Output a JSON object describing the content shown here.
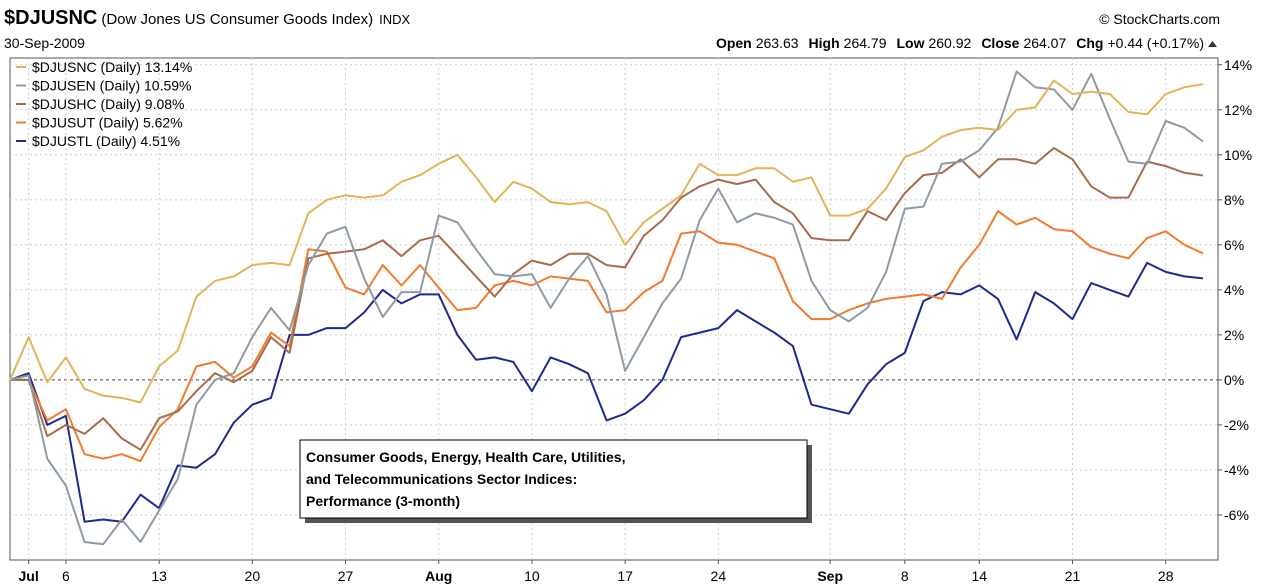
{
  "header": {
    "symbol": "$DJUSNC",
    "name": "(Dow Jones US Consumer Goods Index)",
    "exchange": "INDX",
    "source": "© StockCharts.com",
    "date": "30-Sep-2009",
    "quote": [
      {
        "label": "Open",
        "value": 263.63
      },
      {
        "label": "High",
        "value": 264.79
      },
      {
        "label": "Low",
        "value": 260.92
      },
      {
        "label": "Close",
        "value": 264.07
      },
      {
        "label": "Chg",
        "value": "+0.44 (+0.17%)"
      }
    ]
  },
  "chart_data": {
    "type": "line",
    "annotation": [
      "Consumer Goods, Energy, Health Care, Utilities,",
      "and Telecommunications Sector Indices:",
      "Performance (3-month)"
    ],
    "categories": [
      null,
      "Jul",
      null,
      "6",
      null,
      null,
      null,
      null,
      "13",
      null,
      null,
      null,
      null,
      "20",
      null,
      null,
      null,
      null,
      "27",
      null,
      null,
      null,
      null,
      "Aug",
      null,
      null,
      null,
      null,
      "10",
      null,
      null,
      null,
      null,
      "17",
      null,
      null,
      null,
      null,
      "24",
      null,
      null,
      null,
      null,
      null,
      "Sep",
      null,
      null,
      null,
      "8",
      null,
      null,
      null,
      "14",
      null,
      null,
      null,
      null,
      "21",
      null,
      null,
      null,
      null,
      "28",
      null,
      null
    ],
    "ylim": [
      -8,
      14.3
    ],
    "yticks": [
      {
        "value": -6,
        "label": "-6%"
      },
      {
        "value": -4,
        "label": "-4%"
      },
      {
        "value": -2,
        "label": "-2%"
      },
      {
        "value": 0,
        "label": "0%"
      },
      {
        "value": 2,
        "label": "2%"
      },
      {
        "value": 4,
        "label": "4%"
      },
      {
        "value": 6,
        "label": "6%"
      },
      {
        "value": 8,
        "label": "8%"
      },
      {
        "value": 10,
        "label": "10%"
      },
      {
        "value": 12,
        "label": "12%"
      },
      {
        "value": 14,
        "label": "14%"
      }
    ],
    "grid": true,
    "legend": "top-left",
    "series": [
      {
        "name": "$DJUSNC (Daily) 13.14%",
        "color": "#e2b457",
        "values": [
          0,
          1.9,
          -0.1,
          1.0,
          -0.4,
          -0.7,
          -0.8,
          -1.0,
          0.6,
          1.3,
          3.7,
          4.4,
          4.6,
          5.1,
          5.2,
          5.1,
          7.4,
          8.0,
          8.2,
          8.1,
          8.2,
          8.8,
          9.1,
          9.6,
          10.0,
          9.0,
          7.9,
          8.8,
          8.5,
          7.9,
          7.8,
          7.9,
          7.5,
          6.0,
          7.0,
          7.6,
          8.2,
          9.6,
          9.1,
          9.1,
          9.4,
          9.4,
          8.8,
          9.0,
          7.3,
          7.3,
          7.6,
          8.5,
          9.9,
          10.2,
          10.8,
          11.1,
          11.2,
          11.1,
          12.0,
          12.1,
          13.3,
          12.7,
          12.8,
          12.7,
          11.9,
          11.8,
          12.7,
          13.0,
          13.14
        ]
      },
      {
        "name": "$DJUSEN (Daily) 10.59%",
        "color": "#8d9ba7",
        "values": [
          0,
          0.2,
          -3.5,
          -4.7,
          -7.2,
          -7.3,
          -6.2,
          -7.2,
          -5.8,
          -4.4,
          -1.1,
          0,
          0.3,
          1.9,
          3.2,
          2.2,
          5.1,
          6.5,
          6.8,
          4.5,
          2.8,
          3.9,
          3.9,
          7.3,
          7.0,
          5.8,
          4.7,
          4.6,
          4.7,
          3.2,
          4.5,
          5.5,
          3.8,
          0.4,
          1.9,
          3.4,
          4.5,
          7.1,
          8.5,
          7.0,
          7.4,
          7.2,
          6.9,
          4.4,
          3.1,
          2.6,
          3.2,
          4.8,
          7.6,
          7.7,
          9.6,
          9.7,
          10.2,
          11.2,
          13.7,
          13.0,
          12.9,
          12.0,
          13.6,
          11.6,
          9.7,
          9.6,
          11.5,
          11.2,
          10.59
        ]
      },
      {
        "name": "$DJUSHC (Daily) 9.08%",
        "color": "#a96b4b",
        "values": [
          0,
          0,
          -2.5,
          -2.0,
          -2.4,
          -1.7,
          -2.6,
          -3.1,
          -1.7,
          -1.4,
          -0.5,
          0.3,
          -0.1,
          0.4,
          1.9,
          1.2,
          5.4,
          5.6,
          5.7,
          5.8,
          6.2,
          5.5,
          6.2,
          6.4,
          5.5,
          4.6,
          3.7,
          4.7,
          5.3,
          5.1,
          5.6,
          5.6,
          5.1,
          5.0,
          6.4,
          7.1,
          8.1,
          8.6,
          8.9,
          8.7,
          8.9,
          7.9,
          7.4,
          6.3,
          6.2,
          6.2,
          7.5,
          7.1,
          8.3,
          9.1,
          9.2,
          9.8,
          9.0,
          9.8,
          9.8,
          9.6,
          10.3,
          9.8,
          8.6,
          8.1,
          8.1,
          9.7,
          9.5,
          9.2,
          9.08
        ]
      },
      {
        "name": "$DJUSUT (Daily) 5.62%",
        "color": "#f27b2b",
        "values": [
          0,
          0,
          -1.8,
          -1.3,
          -3.3,
          -3.5,
          -3.3,
          -3.6,
          -2.1,
          -1.3,
          0.6,
          0.8,
          0.1,
          0.6,
          2.1,
          1.5,
          5.8,
          5.7,
          4.1,
          3.8,
          5.1,
          4.2,
          5.1,
          4.1,
          3.1,
          3.2,
          4.2,
          4.4,
          4.2,
          4.6,
          4.5,
          4.4,
          3.0,
          3.1,
          3.9,
          4.4,
          6.5,
          6.6,
          6.1,
          6.0,
          5.7,
          5.4,
          3.5,
          2.7,
          2.7,
          3.1,
          3.4,
          3.6,
          3.7,
          3.8,
          3.6,
          5.0,
          6.0,
          7.5,
          6.9,
          7.2,
          6.7,
          6.6,
          5.9,
          5.6,
          5.4,
          6.3,
          6.6,
          6.0,
          5.62
        ]
      },
      {
        "name": "$DJUSTL (Daily) 4.51%",
        "color": "#1d2a92",
        "values": [
          0,
          0.3,
          -2.0,
          -1.6,
          -6.3,
          -6.2,
          -6.3,
          -5.1,
          -5.7,
          -3.8,
          -3.9,
          -3.3,
          -1.9,
          -1.1,
          -0.8,
          2.0,
          2.0,
          2.3,
          2.3,
          3.0,
          4.0,
          3.4,
          3.8,
          3.8,
          2.0,
          0.9,
          1.0,
          0.8,
          -0.5,
          1.0,
          0.7,
          0.3,
          -1.8,
          -1.5,
          -0.9,
          0.0,
          1.9,
          2.1,
          2.3,
          3.1,
          2.6,
          2.1,
          1.5,
          -1.1,
          -1.3,
          -1.5,
          -0.2,
          0.7,
          1.2,
          3.5,
          3.9,
          3.8,
          4.2,
          3.6,
          1.8,
          3.9,
          3.4,
          2.7,
          4.3,
          4.0,
          3.7,
          5.2,
          4.8,
          4.6,
          4.51
        ]
      }
    ]
  }
}
